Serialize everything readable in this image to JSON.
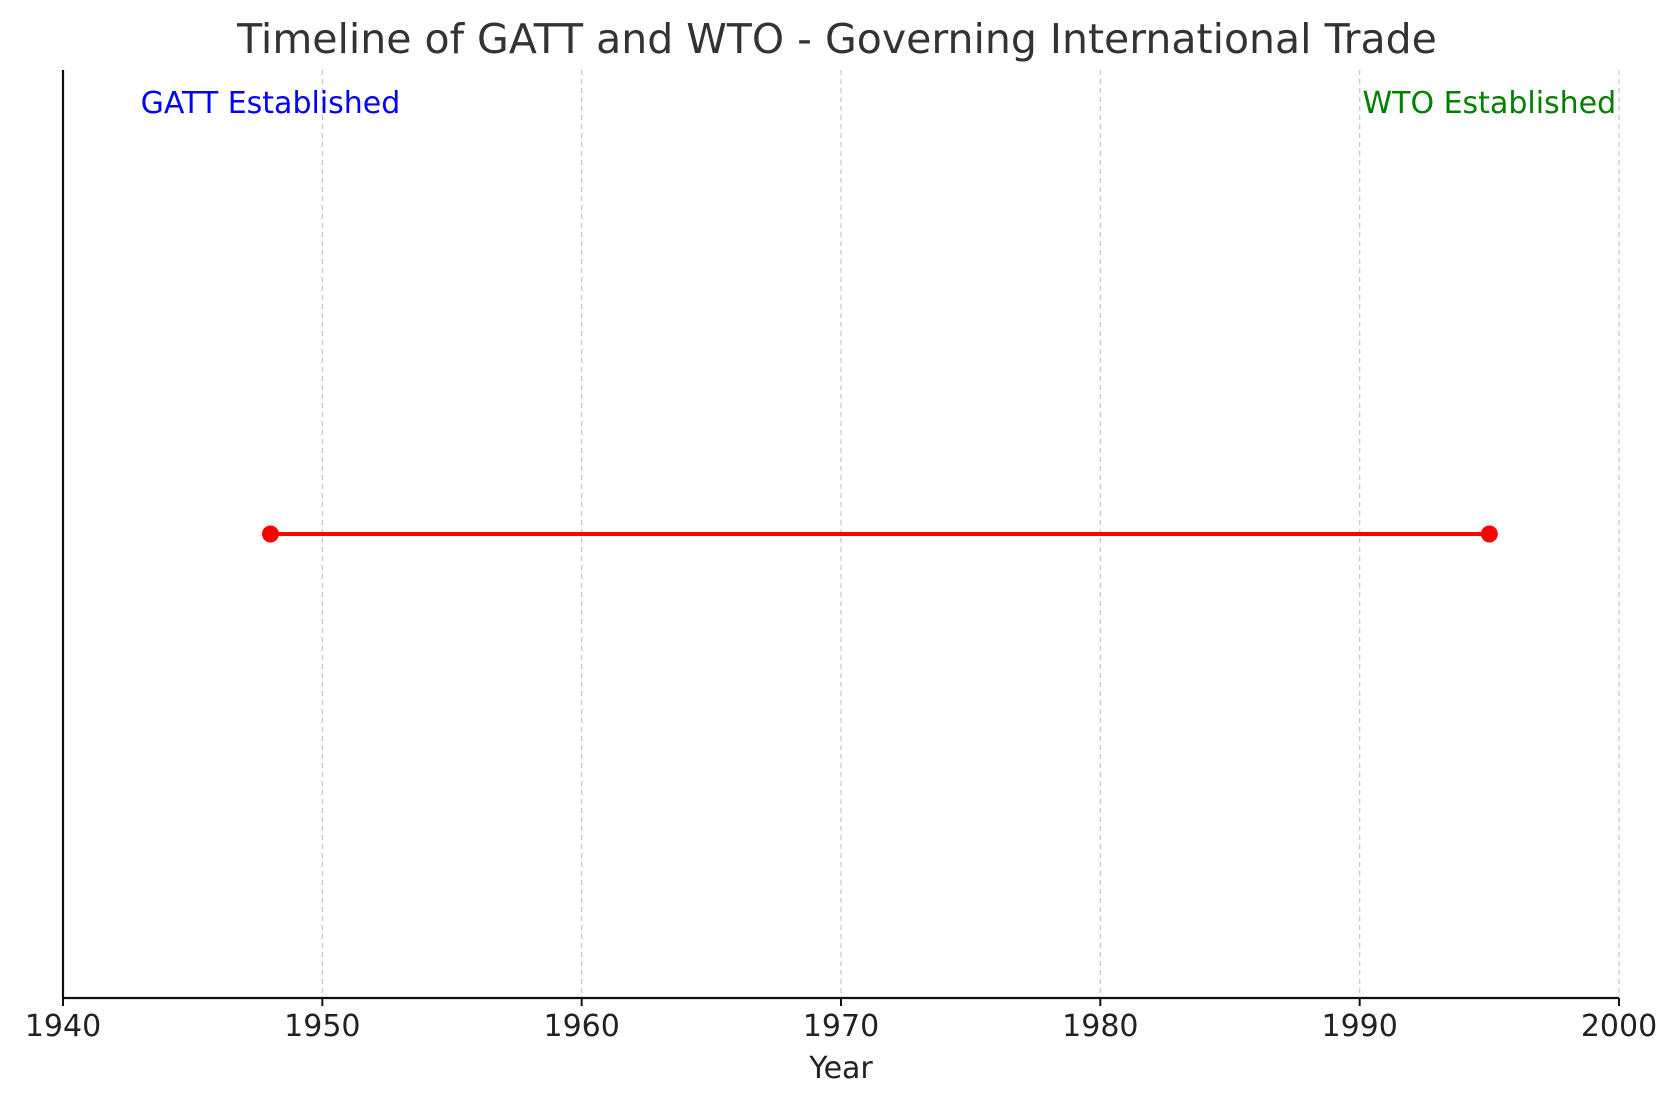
{
  "chart_data": {
    "type": "line",
    "title": "Timeline of GATT and WTO - Governing International Trade",
    "xlabel": "Year",
    "ylabel": "",
    "xlim": [
      1940,
      2000
    ],
    "x_ticks": [
      "1940",
      "1950",
      "1960",
      "1970",
      "1980",
      "1990",
      "2000"
    ],
    "grid": "vertical dashed",
    "series": [
      {
        "x": [
          1948,
          1995
        ],
        "y": [
          0,
          0
        ],
        "color": "#ff0000",
        "marker": "circle"
      }
    ],
    "annotations": [
      {
        "text": "GATT Established",
        "year": 1948,
        "color": "#0000ff"
      },
      {
        "text": "WTO Established",
        "year": 1995,
        "color": "#008000"
      }
    ]
  }
}
